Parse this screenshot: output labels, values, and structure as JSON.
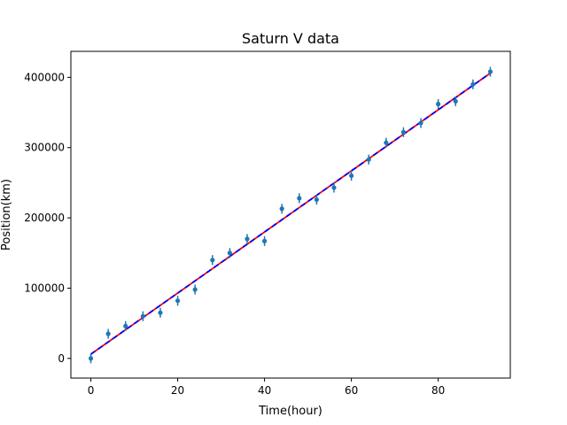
{
  "chart_data": {
    "type": "scatter",
    "title": "Saturn V data",
    "xlabel": "Time(hour)",
    "ylabel": "Position(km)",
    "xlim": [
      -4.6,
      96.6
    ],
    "ylim": [
      -28000,
      437000
    ],
    "xticks": [
      0,
      20,
      40,
      60,
      80
    ],
    "xtick_labels": [
      "0",
      "20",
      "40",
      "60",
      "80"
    ],
    "yticks": [
      0,
      100000,
      200000,
      300000,
      400000
    ],
    "ytick_labels": [
      "0",
      "100000",
      "200000",
      "300000",
      "400000"
    ],
    "grid": false,
    "series": [
      {
        "kind": "errorbar",
        "color": "#1f77b4",
        "x": [
          0,
          4,
          8,
          12,
          16,
          20,
          24,
          28,
          32,
          36,
          40,
          44,
          48,
          52,
          56,
          60,
          64,
          68,
          72,
          76,
          80,
          84,
          88,
          92
        ],
        "y": [
          0,
          35000,
          46000,
          60000,
          65000,
          82000,
          98000,
          140000,
          150000,
          170000,
          167000,
          213000,
          228000,
          226000,
          243000,
          260000,
          283000,
          307000,
          322000,
          335000,
          362000,
          366000,
          390000,
          408000
        ],
        "yerr": 7000
      },
      {
        "kind": "fit-line",
        "color": "#ff0000",
        "dash_color": "#0000ff",
        "x": [
          0,
          92
        ],
        "y": [
          6000,
          406000
        ]
      }
    ]
  }
}
